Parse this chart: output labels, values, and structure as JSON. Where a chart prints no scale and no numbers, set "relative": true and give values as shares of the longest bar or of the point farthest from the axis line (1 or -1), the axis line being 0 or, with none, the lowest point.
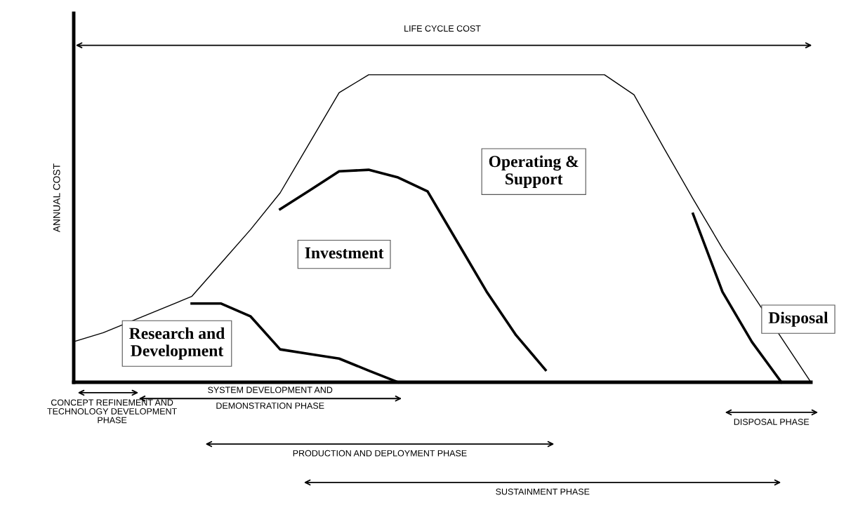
{
  "chart_data": {
    "type": "line",
    "relative": true,
    "ylabel": "ANNUAL COST",
    "legend": false,
    "marker": "none",
    "line_style": "solid",
    "categories": [
      null,
      null,
      null,
      null,
      null,
      null,
      null,
      null,
      null,
      null,
      null,
      null,
      null,
      null,
      null,
      null,
      null,
      null,
      null,
      null,
      null,
      null,
      null,
      null,
      null,
      null
    ],
    "series": [
      {
        "color": "#000000",
        "values": [
          0.132,
          0.161,
          null,
          null,
          0.279,
          0.388,
          0.497,
          0.616,
          0.779,
          0.942,
          1,
          1,
          1,
          1,
          1,
          1,
          1,
          1,
          1,
          0.935,
          0.764,
          0.597,
          0.435,
          0.289,
          null,
          0
        ]
      },
      {
        "color": "#000000",
        "values": [
          null,
          null,
          null,
          null,
          0.256,
          0.256,
          0.214,
          0.107,
          0.092,
          0.077,
          0.038,
          0,
          null,
          null,
          null,
          null,
          null,
          null,
          null,
          null,
          null,
          null,
          null,
          null,
          null,
          null
        ]
      },
      {
        "color": "#000000",
        "values": [
          null,
          null,
          null,
          null,
          null,
          null,
          null,
          0.563,
          0.624,
          0.686,
          0.691,
          0.666,
          0.621,
          0.458,
          0.295,
          0.153,
          0.04,
          null,
          null,
          null,
          null,
          null,
          null,
          null,
          null,
          null
        ]
      },
      {
        "color": "#000000",
        "values": [
          null,
          null,
          null,
          null,
          null,
          null,
          null,
          null,
          null,
          null,
          null,
          null,
          null,
          null,
          null,
          null,
          null,
          null,
          null,
          null,
          null,
          0.548,
          0.294,
          0.131,
          0,
          null
        ]
      }
    ],
    "annotations": [
      "Operating &\nSupport",
      "Research and\nDevelopment",
      "Investment",
      "Disposal",
      "LIFE CYCLE COST",
      "CONCEPT REFINEMENT AND\nTECHNOLOGY DEVELOPMENT\nPHASE",
      "SYSTEM DEVELOPMENT AND\nDEMONSTRATION PHASE",
      "PRODUCTION AND DEPLOYMENT PHASE",
      "SUSTAINMENT PHASE",
      "DISPOSAL PHASE"
    ]
  }
}
